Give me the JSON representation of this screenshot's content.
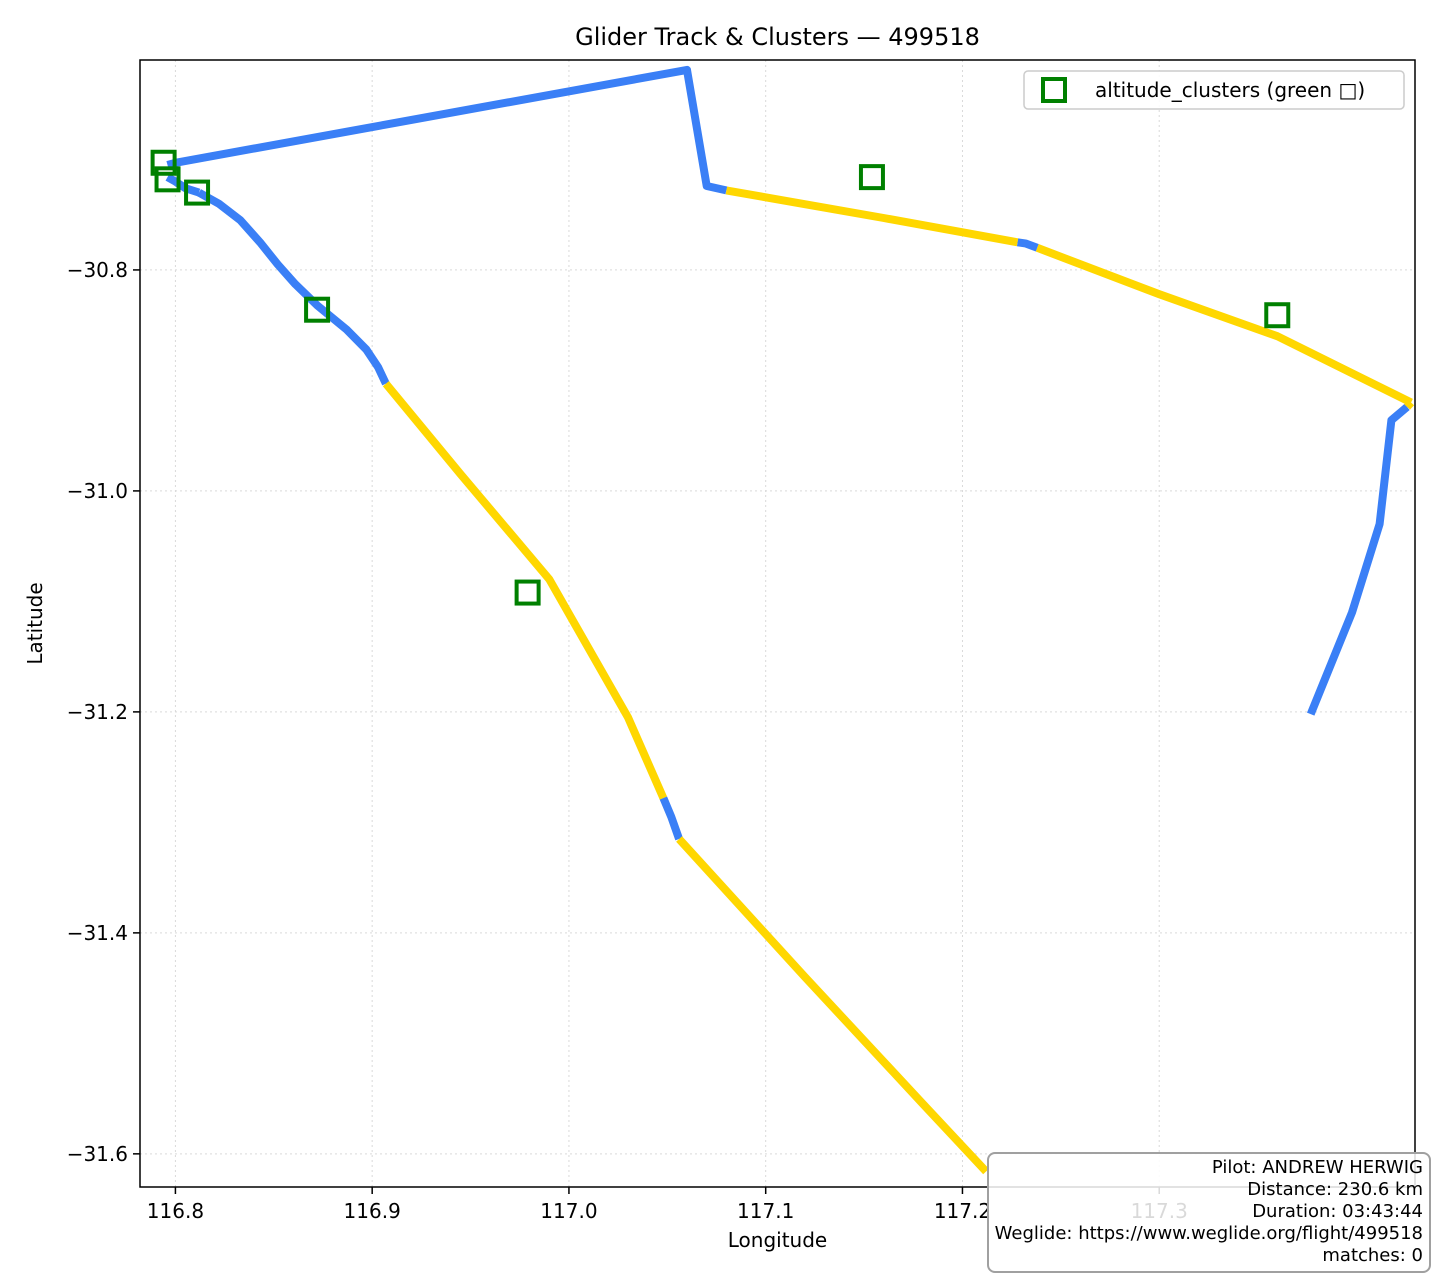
{
  "chart_data": {
    "type": "scatter",
    "title": "Glider Track & Clusters — 499518",
    "xlabel": "Longitude",
    "ylabel": "Latitude",
    "xlim": [
      116.782,
      117.43
    ],
    "ylim": [
      -31.63,
      -30.61
    ],
    "xticks": [
      116.8,
      116.9,
      117.0,
      117.1,
      117.2,
      117.3
    ],
    "xtick_labels": [
      "116.8",
      "116.9",
      "117.0",
      "117.1",
      "117.2",
      "117.3"
    ],
    "yticks": [
      -30.8,
      -31.0,
      -31.2,
      -31.4,
      -31.6
    ],
    "ytick_labels": [
      "−30.8",
      "−31.0",
      "−31.2",
      "−31.4",
      "−31.6"
    ],
    "grid": true,
    "legend_position": "top-right",
    "colors": {
      "climb": "#ffd700",
      "glide": "#3a7ff6",
      "cluster": "#008000"
    },
    "track": [
      {
        "phase": "glide",
        "points": [
          [
            116.796,
            -30.716
          ],
          [
            116.8,
            -30.72
          ],
          [
            116.805,
            -30.726
          ],
          [
            116.812,
            -30.73
          ]
        ]
      },
      {
        "phase": "glide",
        "points": [
          [
            116.812,
            -30.73
          ],
          [
            116.822,
            -30.74
          ],
          [
            116.833,
            -30.755
          ],
          [
            116.843,
            -30.775
          ],
          [
            116.852,
            -30.795
          ],
          [
            116.861,
            -30.813
          ],
          [
            116.872,
            -30.832
          ],
          [
            116.887,
            -30.854
          ],
          [
            116.897,
            -30.872
          ],
          [
            116.903,
            -30.888
          ],
          [
            116.907,
            -30.903
          ]
        ]
      },
      {
        "phase": "climb",
        "points": [
          [
            116.907,
            -30.903
          ],
          [
            116.945,
            -30.985
          ],
          [
            116.99,
            -31.08
          ],
          [
            117.03,
            -31.205
          ],
          [
            117.048,
            -31.278
          ]
        ]
      },
      {
        "phase": "glide",
        "points": [
          [
            117.048,
            -31.278
          ],
          [
            117.052,
            -31.295
          ],
          [
            117.056,
            -31.315
          ]
        ]
      },
      {
        "phase": "climb",
        "points": [
          [
            117.056,
            -31.315
          ],
          [
            117.12,
            -31.44
          ],
          [
            117.18,
            -31.555
          ],
          [
            117.212,
            -31.616
          ]
        ]
      },
      {
        "phase": "glide",
        "points": [
          [
            117.377,
            -31.202
          ],
          [
            117.398,
            -31.11
          ],
          [
            117.412,
            -31.03
          ],
          [
            117.418,
            -30.936
          ],
          [
            117.426,
            -30.924
          ]
        ]
      },
      {
        "phase": "climb",
        "points": [
          [
            117.426,
            -30.924
          ],
          [
            117.428,
            -30.92
          ]
        ]
      },
      {
        "phase": "climb",
        "points": [
          [
            117.428,
            -30.92
          ],
          [
            117.36,
            -30.86
          ],
          [
            117.3,
            -30.822
          ],
          [
            117.238,
            -30.78
          ]
        ]
      },
      {
        "phase": "glide",
        "points": [
          [
            117.238,
            -30.78
          ],
          [
            117.232,
            -30.776
          ],
          [
            117.228,
            -30.775
          ]
        ]
      },
      {
        "phase": "climb",
        "points": [
          [
            117.228,
            -30.775
          ],
          [
            117.16,
            -30.753
          ],
          [
            117.08,
            -30.728
          ]
        ]
      },
      {
        "phase": "glide",
        "points": [
          [
            117.08,
            -30.728
          ],
          [
            117.07,
            -30.724
          ],
          [
            117.06,
            -30.619
          ],
          [
            116.8,
            -30.703
          ],
          [
            116.796,
            -30.705
          ]
        ]
      }
    ],
    "altitude_clusters": [
      {
        "lon": 116.794,
        "lat": -30.703
      },
      {
        "lon": 116.796,
        "lat": -30.718
      },
      {
        "lon": 116.811,
        "lat": -30.73
      },
      {
        "lon": 116.872,
        "lat": -30.836
      },
      {
        "lon": 116.979,
        "lat": -31.092
      },
      {
        "lon": 117.154,
        "lat": -30.716
      },
      {
        "lon": 117.36,
        "lat": -30.841
      }
    ],
    "legend": [
      {
        "label": "altitude_clusters (green □)",
        "marker": "hollow-square"
      }
    ]
  },
  "info": {
    "pilot": "Pilot: ANDREW HERWIG",
    "distance": "Distance: 230.6 km",
    "duration": "Duration: 03:43:44",
    "weglide": "Weglide: https://www.weglide.org/flight/499518",
    "matches": "matches: 0"
  }
}
